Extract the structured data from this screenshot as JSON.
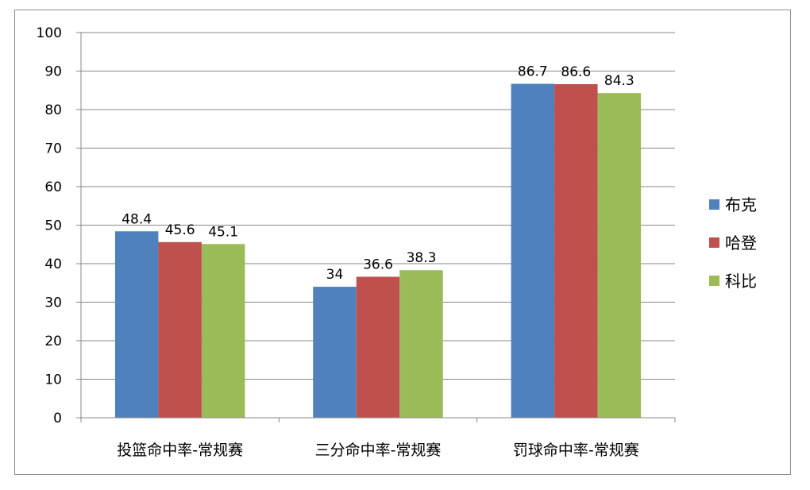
{
  "chart_data": {
    "type": "bar",
    "categories": [
      "投篮命中率-常规赛",
      "三分命中率-常规赛",
      "罚球命中率-常规赛"
    ],
    "series": [
      {
        "name": "布克",
        "color": "#4f81bd",
        "values": [
          48.4,
          34,
          86.7
        ]
      },
      {
        "name": "哈登",
        "color": "#c0504d",
        "values": [
          45.6,
          36.6,
          86.6
        ]
      },
      {
        "name": "科比",
        "color": "#9bbb59",
        "values": [
          45.1,
          38.3,
          84.3
        ]
      }
    ],
    "ylim": [
      0,
      100
    ],
    "yticks": [
      0,
      10,
      20,
      30,
      40,
      50,
      60,
      70,
      80,
      90,
      100
    ],
    "grid": true,
    "legend": "right",
    "data_labels": true
  }
}
